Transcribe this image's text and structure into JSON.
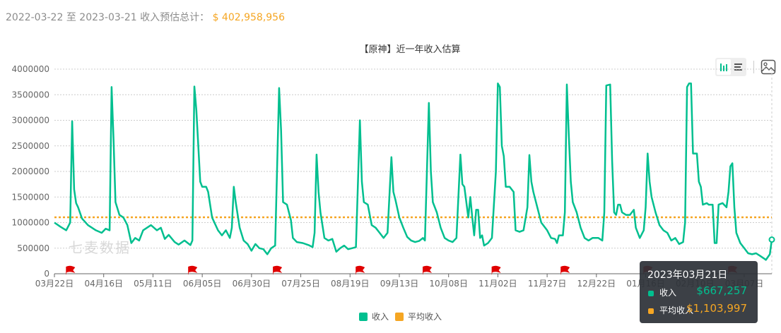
{
  "summary": {
    "range_start": "2022-03-22",
    "sep": "至",
    "range_end": "2023-03-21",
    "label": "收入预估总计：",
    "total": "$ 402,958,956"
  },
  "toolbar": {
    "chart_view_icon": "bar-chart-icon",
    "list_view_icon": "list-icon",
    "save_image_icon": "image-icon"
  },
  "watermark": "七麦数据",
  "colors": {
    "income": "#00bf8f",
    "average": "#f5a623",
    "flag": "#e00000"
  },
  "tooltip": {
    "date": "2023年03月21日",
    "rows": [
      {
        "label": "收入",
        "value": "$667,257"
      },
      {
        "label": "平均收入",
        "value": "$1,103,997"
      }
    ]
  },
  "chart_data": {
    "type": "line",
    "title": "【原神】近一年收入估算",
    "xlabel": "",
    "ylabel": "",
    "ylim": [
      0,
      4000000
    ],
    "yticks": [
      0,
      500000,
      1000000,
      1500000,
      2000000,
      2500000,
      3000000,
      3500000,
      4000000
    ],
    "xlim_days": [
      0,
      364
    ],
    "xticks": [
      {
        "day": 0,
        "label": "03月22日"
      },
      {
        "day": 25,
        "label": "04月16日"
      },
      {
        "day": 50,
        "label": "05月11日"
      },
      {
        "day": 75,
        "label": "06月05日"
      },
      {
        "day": 100,
        "label": "06月30日"
      },
      {
        "day": 125,
        "label": "07月25日"
      },
      {
        "day": 150,
        "label": "08月19日"
      },
      {
        "day": 175,
        "label": "09月13日"
      },
      {
        "day": 200,
        "label": "10月08日"
      },
      {
        "day": 225,
        "label": "11月02日"
      },
      {
        "day": 250,
        "label": "11月27日"
      },
      {
        "day": 275,
        "label": "12月22日"
      },
      {
        "day": 300,
        "label": "01月16日"
      },
      {
        "day": 325,
        "label": "02月10日"
      },
      {
        "day": 350,
        "label": "03月07日"
      }
    ],
    "grid": true,
    "legend": "bottom-center",
    "series": [
      {
        "name": "收入",
        "points": [
          [
            0,
            1000000
          ],
          [
            3,
            920000
          ],
          [
            6,
            850000
          ],
          [
            8,
            1000000
          ],
          [
            9,
            2980000
          ],
          [
            10,
            1650000
          ],
          [
            11,
            1380000
          ],
          [
            12,
            1300000
          ],
          [
            14,
            1080000
          ],
          [
            17,
            950000
          ],
          [
            21,
            850000
          ],
          [
            24,
            800000
          ],
          [
            26,
            880000
          ],
          [
            28,
            850000
          ],
          [
            29,
            3650000
          ],
          [
            30,
            2600000
          ],
          [
            31,
            1400000
          ],
          [
            33,
            1150000
          ],
          [
            35,
            1100000
          ],
          [
            37,
            950000
          ],
          [
            39,
            600000
          ],
          [
            41,
            700000
          ],
          [
            43,
            650000
          ],
          [
            45,
            850000
          ],
          [
            49,
            950000
          ],
          [
            52,
            850000
          ],
          [
            54,
            900000
          ],
          [
            56,
            680000
          ],
          [
            58,
            760000
          ],
          [
            61,
            620000
          ],
          [
            63,
            570000
          ],
          [
            66,
            650000
          ],
          [
            69,
            560000
          ],
          [
            70,
            650000
          ],
          [
            71,
            3660000
          ],
          [
            72,
            3200000
          ],
          [
            74,
            1800000
          ],
          [
            75,
            1700000
          ],
          [
            77,
            1700000
          ],
          [
            78,
            1600000
          ],
          [
            80,
            1100000
          ],
          [
            83,
            850000
          ],
          [
            85,
            750000
          ],
          [
            87,
            850000
          ],
          [
            89,
            700000
          ],
          [
            90,
            900000
          ],
          [
            91,
            1700000
          ],
          [
            92,
            1400000
          ],
          [
            94,
            900000
          ],
          [
            96,
            650000
          ],
          [
            98,
            580000
          ],
          [
            100,
            450000
          ],
          [
            102,
            580000
          ],
          [
            104,
            500000
          ],
          [
            106,
            480000
          ],
          [
            108,
            380000
          ],
          [
            110,
            500000
          ],
          [
            112,
            550000
          ],
          [
            114,
            3630000
          ],
          [
            115,
            2800000
          ],
          [
            116,
            1400000
          ],
          [
            118,
            1350000
          ],
          [
            120,
            1050000
          ],
          [
            121,
            700000
          ],
          [
            123,
            620000
          ],
          [
            126,
            600000
          ],
          [
            129,
            560000
          ],
          [
            131,
            520000
          ],
          [
            132,
            800000
          ],
          [
            133,
            2330000
          ],
          [
            134,
            1600000
          ],
          [
            135,
            1200000
          ],
          [
            137,
            700000
          ],
          [
            139,
            650000
          ],
          [
            141,
            680000
          ],
          [
            143,
            430000
          ],
          [
            145,
            500000
          ],
          [
            147,
            550000
          ],
          [
            149,
            480000
          ],
          [
            151,
            500000
          ],
          [
            153,
            520000
          ],
          [
            155,
            3000000
          ],
          [
            156,
            1800000
          ],
          [
            157,
            1400000
          ],
          [
            159,
            1350000
          ],
          [
            161,
            950000
          ],
          [
            163,
            900000
          ],
          [
            165,
            800000
          ],
          [
            167,
            700000
          ],
          [
            169,
            800000
          ],
          [
            171,
            2280000
          ],
          [
            172,
            1600000
          ],
          [
            173,
            1450000
          ],
          [
            175,
            1100000
          ],
          [
            177,
            900000
          ],
          [
            179,
            720000
          ],
          [
            181,
            650000
          ],
          [
            183,
            620000
          ],
          [
            185,
            640000
          ],
          [
            187,
            700000
          ],
          [
            188,
            650000
          ],
          [
            190,
            3340000
          ],
          [
            191,
            2000000
          ],
          [
            192,
            1400000
          ],
          [
            194,
            1200000
          ],
          [
            196,
            900000
          ],
          [
            198,
            700000
          ],
          [
            200,
            650000
          ],
          [
            202,
            620000
          ],
          [
            204,
            700000
          ],
          [
            206,
            2330000
          ],
          [
            207,
            1750000
          ],
          [
            208,
            1700000
          ],
          [
            210,
            1100000
          ],
          [
            211,
            1500000
          ],
          [
            212,
            1100000
          ],
          [
            213,
            750000
          ],
          [
            214,
            1250000
          ],
          [
            215,
            1250000
          ],
          [
            216,
            700000
          ],
          [
            217,
            750000
          ],
          [
            218,
            550000
          ],
          [
            220,
            600000
          ],
          [
            222,
            700000
          ],
          [
            224,
            2000000
          ],
          [
            225,
            3720000
          ],
          [
            226,
            3650000
          ],
          [
            227,
            2500000
          ],
          [
            228,
            2300000
          ],
          [
            229,
            1700000
          ],
          [
            231,
            1700000
          ],
          [
            233,
            1600000
          ],
          [
            234,
            850000
          ],
          [
            236,
            820000
          ],
          [
            238,
            850000
          ],
          [
            240,
            1300000
          ],
          [
            241,
            2320000
          ],
          [
            242,
            1800000
          ],
          [
            243,
            1600000
          ],
          [
            245,
            1300000
          ],
          [
            247,
            1000000
          ],
          [
            250,
            850000
          ],
          [
            252,
            700000
          ],
          [
            254,
            680000
          ],
          [
            255,
            600000
          ],
          [
            256,
            750000
          ],
          [
            258,
            750000
          ],
          [
            259,
            1200000
          ],
          [
            260,
            3700000
          ],
          [
            261,
            2700000
          ],
          [
            262,
            1800000
          ],
          [
            263,
            1400000
          ],
          [
            265,
            1200000
          ],
          [
            267,
            900000
          ],
          [
            269,
            700000
          ],
          [
            271,
            650000
          ],
          [
            273,
            700000
          ],
          [
            276,
            700000
          ],
          [
            278,
            650000
          ],
          [
            279,
            1200000
          ],
          [
            280,
            3680000
          ],
          [
            282,
            3700000
          ],
          [
            283,
            2200000
          ],
          [
            284,
            1200000
          ],
          [
            285,
            1150000
          ],
          [
            286,
            1350000
          ],
          [
            287,
            1350000
          ],
          [
            288,
            1200000
          ],
          [
            290,
            1150000
          ],
          [
            292,
            1150000
          ],
          [
            294,
            1250000
          ],
          [
            295,
            900000
          ],
          [
            297,
            700000
          ],
          [
            299,
            850000
          ],
          [
            300,
            1300000
          ],
          [
            301,
            2350000
          ],
          [
            302,
            1800000
          ],
          [
            303,
            1500000
          ],
          [
            305,
            1200000
          ],
          [
            307,
            950000
          ],
          [
            309,
            850000
          ],
          [
            311,
            800000
          ],
          [
            313,
            650000
          ],
          [
            315,
            700000
          ],
          [
            317,
            580000
          ],
          [
            319,
            620000
          ],
          [
            320,
            1000000
          ],
          [
            321,
            3650000
          ],
          [
            322,
            3720000
          ],
          [
            323,
            3720000
          ],
          [
            324,
            2350000
          ],
          [
            326,
            2350000
          ],
          [
            327,
            1800000
          ],
          [
            328,
            1700000
          ],
          [
            329,
            1350000
          ],
          [
            331,
            1380000
          ],
          [
            332,
            1350000
          ],
          [
            334,
            1350000
          ],
          [
            335,
            600000
          ],
          [
            336,
            600000
          ],
          [
            337,
            1350000
          ],
          [
            339,
            1380000
          ],
          [
            341,
            1300000
          ],
          [
            342,
            1600000
          ],
          [
            343,
            2100000
          ],
          [
            344,
            2160000
          ],
          [
            345,
            1300000
          ],
          [
            346,
            800000
          ],
          [
            348,
            600000
          ],
          [
            350,
            500000
          ],
          [
            352,
            400000
          ],
          [
            354,
            380000
          ],
          [
            356,
            400000
          ],
          [
            358,
            350000
          ],
          [
            360,
            300000
          ],
          [
            361,
            270000
          ],
          [
            363,
            380000
          ],
          [
            364,
            667257
          ]
        ]
      },
      {
        "name": "平均收入",
        "constant": 1103997
      }
    ],
    "event_flags_days": [
      8,
      70,
      113,
      155,
      189,
      224,
      259,
      301,
      344
    ]
  }
}
